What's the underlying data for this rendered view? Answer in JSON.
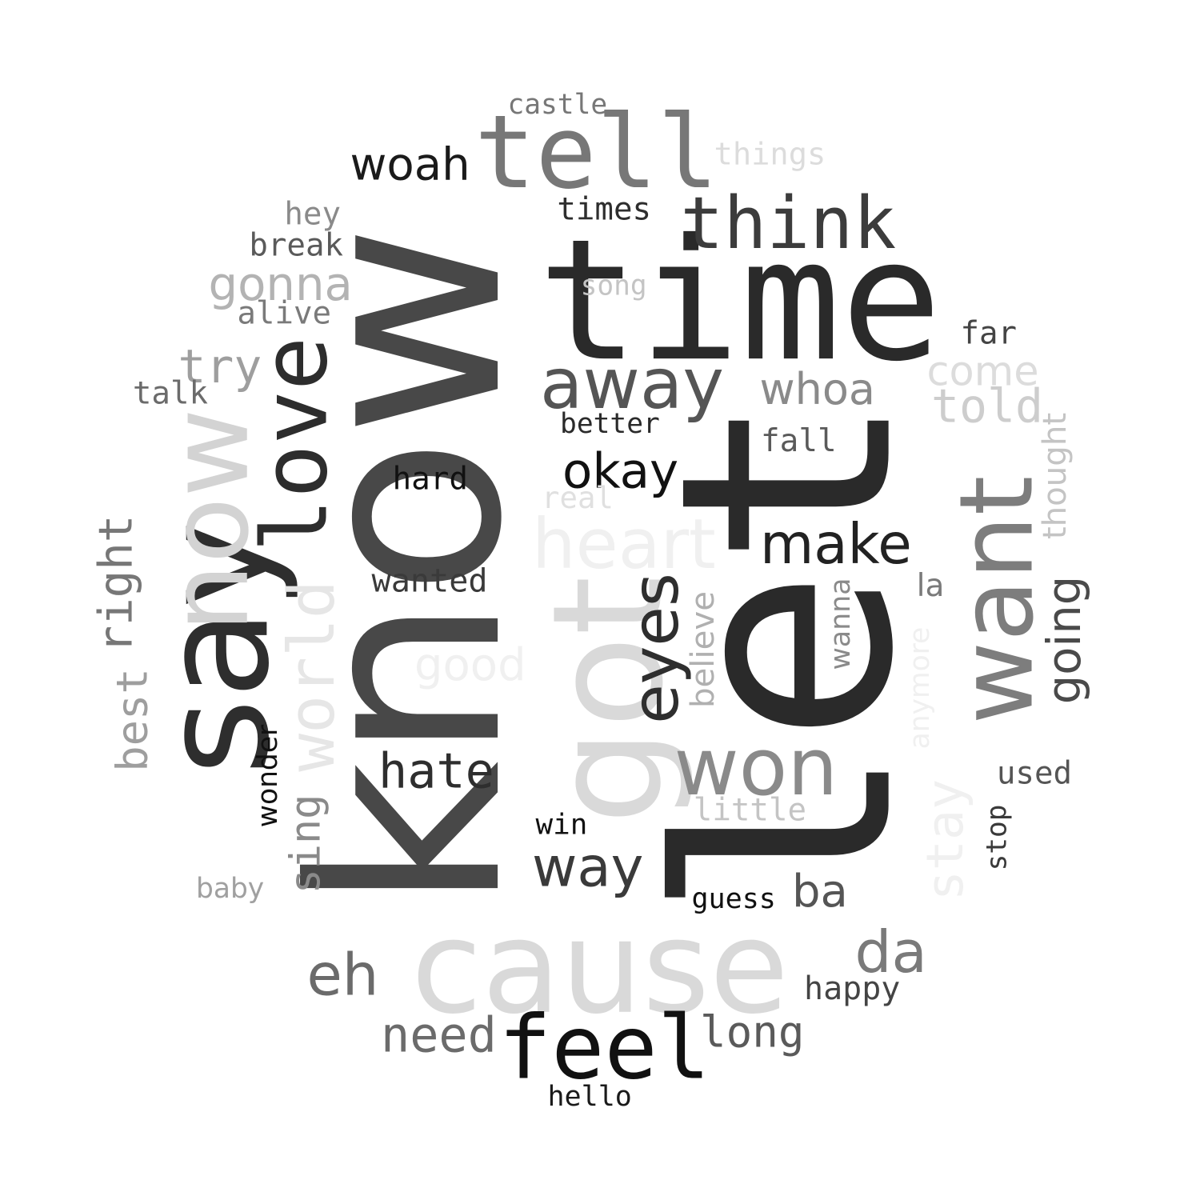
{
  "words": [
    {
      "text": "know",
      "color": "#484848"
    },
    {
      "text": "let",
      "color": "#2a2a2a"
    },
    {
      "text": "time",
      "color": "#2a2a2a"
    },
    {
      "text": "cause",
      "color": "#d9d9d9"
    },
    {
      "text": "got",
      "color": "#d9d9d9"
    },
    {
      "text": "say",
      "color": "#2e2e2e"
    },
    {
      "text": "now",
      "color": "#d3d3d3"
    },
    {
      "text": "want",
      "color": "#7d7d7d"
    },
    {
      "text": "tell",
      "color": "#777777"
    },
    {
      "text": "feel",
      "color": "#111111"
    },
    {
      "text": "love",
      "color": "#2d2d2d"
    },
    {
      "text": "away",
      "color": "#555555"
    },
    {
      "text": "think",
      "color": "#3c3c3c"
    },
    {
      "text": "won",
      "color": "#8a8a8a"
    },
    {
      "text": "heart",
      "color": "#f0f0f0"
    },
    {
      "text": "make",
      "color": "#222222"
    },
    {
      "text": "eyes",
      "color": "#2e2e2e"
    },
    {
      "text": "world",
      "color": "#e6e6e6"
    },
    {
      "text": "way",
      "color": "#3a3a3a"
    },
    {
      "text": "woah",
      "color": "#1a1a1a"
    },
    {
      "text": "okay",
      "color": "#111111"
    },
    {
      "text": "hate",
      "color": "#2e2e2e"
    },
    {
      "text": "eh",
      "color": "#6b6b6b"
    },
    {
      "text": "need",
      "color": "#6b6b6b"
    },
    {
      "text": "long",
      "color": "#5a5a5a"
    },
    {
      "text": "da",
      "color": "#7a7a7a"
    },
    {
      "text": "ba",
      "color": "#555555"
    },
    {
      "text": "gonna",
      "color": "#b3b3b3"
    },
    {
      "text": "try",
      "color": "#9e9e9e"
    },
    {
      "text": "whoa",
      "color": "#8a8a8a"
    },
    {
      "text": "come",
      "color": "#dcdcdc"
    },
    {
      "text": "told",
      "color": "#cdcdcd"
    },
    {
      "text": "good",
      "color": "#f0f0f0"
    },
    {
      "text": "going",
      "color": "#4a4a4a"
    },
    {
      "text": "stay",
      "color": "#f0f0f0"
    },
    {
      "text": "right",
      "color": "#777777"
    },
    {
      "text": "best",
      "color": "#9e9e9e"
    },
    {
      "text": "sing",
      "color": "#8a8a8a"
    },
    {
      "text": "hard",
      "color": "#111111"
    },
    {
      "text": "wanted",
      "color": "#3a3a3a"
    },
    {
      "text": "better",
      "color": "#2a2a2a"
    },
    {
      "text": "fall",
      "color": "#5a5a5a"
    },
    {
      "text": "real",
      "color": "#e0e0e0"
    },
    {
      "text": "believe",
      "color": "#b0b0b0"
    },
    {
      "text": "wanna",
      "color": "#8a8a8a"
    },
    {
      "text": "thought",
      "color": "#c4c4c4"
    },
    {
      "text": "anymore",
      "color": "#f0f0f0"
    },
    {
      "text": "la",
      "color": "#7a7a7a"
    },
    {
      "text": "castle",
      "color": "#777777"
    },
    {
      "text": "things",
      "color": "#dcdcdc"
    },
    {
      "text": "hey",
      "color": "#8a8a8a"
    },
    {
      "text": "break",
      "color": "#5a5a5a"
    },
    {
      "text": "alive",
      "color": "#7a7a7a"
    },
    {
      "text": "times",
      "color": "#2e2e2e"
    },
    {
      "text": "song",
      "color": "#c4c4c4"
    },
    {
      "text": "far",
      "color": "#444444"
    },
    {
      "text": "talk",
      "color": "#6b6b6b"
    },
    {
      "text": "wonder",
      "color": "#111111"
    },
    {
      "text": "win",
      "color": "#111111"
    },
    {
      "text": "little",
      "color": "#c4c4c4"
    },
    {
      "text": "used",
      "color": "#555555"
    },
    {
      "text": "stop",
      "color": "#3a3a3a"
    },
    {
      "text": "baby",
      "color": "#a0a0a0"
    },
    {
      "text": "guess",
      "color": "#111111"
    },
    {
      "text": "happy",
      "color": "#444444"
    },
    {
      "text": "hello",
      "color": "#1a1a1a"
    }
  ]
}
